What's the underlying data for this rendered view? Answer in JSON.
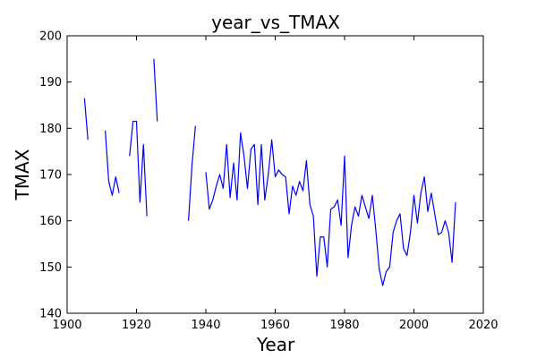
{
  "chart_data": {
    "type": "line",
    "title": "year_vs_TMAX",
    "xlabel": "Year",
    "ylabel": "TMAX",
    "xlim": [
      1900,
      2020
    ],
    "ylim": [
      140,
      200
    ],
    "xticks": [
      1900,
      1920,
      1940,
      1960,
      1980,
      2000,
      2020
    ],
    "yticks": [
      140,
      150,
      160,
      170,
      180,
      190,
      200
    ],
    "grid": false,
    "color": "#0000ff",
    "segments": [
      {
        "x": [
          1905,
          1906
        ],
        "y": [
          186.5,
          177.5
        ]
      },
      {
        "x": [
          1911,
          1912,
          1913,
          1914,
          1915
        ],
        "y": [
          179.5,
          168.5,
          165.5,
          169.5,
          166
        ]
      },
      {
        "x": [
          1918,
          1919,
          1920,
          1921,
          1922,
          1923
        ],
        "y": [
          174,
          181.5,
          181.5,
          164,
          176.5,
          161
        ]
      },
      {
        "x": [
          1925,
          1926
        ],
        "y": [
          195,
          181.5
        ]
      },
      {
        "x": [
          1935,
          1936,
          1937
        ],
        "y": [
          160,
          172,
          180.5
        ]
      },
      {
        "x": [
          1940,
          1941,
          1942,
          1943,
          1944,
          1945,
          1946,
          1947,
          1948,
          1949,
          1950,
          1951,
          1952,
          1953,
          1954,
          1955,
          1956,
          1957,
          1958,
          1959,
          1960,
          1961,
          1962,
          1963,
          1964,
          1965,
          1966,
          1967,
          1968,
          1969,
          1970,
          1971,
          1972,
          1973,
          1974,
          1975,
          1976,
          1977,
          1978,
          1979,
          1980,
          1981,
          1982,
          1983,
          1984,
          1985,
          1986,
          1987,
          1988,
          1989,
          1990,
          1991,
          1992,
          1993,
          1994,
          1995,
          1996,
          1997,
          1998,
          1999,
          2000,
          2001,
          2002,
          2003,
          2004,
          2005,
          2006,
          2007,
          2008,
          2009,
          2010,
          2011,
          2012
        ],
        "y": [
          170.5,
          162.5,
          164.5,
          167.5,
          170,
          167,
          176.5,
          165,
          172.5,
          164.5,
          179,
          174,
          167,
          175.5,
          176.5,
          163.5,
          176.5,
          164.5,
          170,
          177.5,
          169.5,
          171,
          170,
          169.5,
          161.5,
          167.5,
          165.5,
          168.5,
          166.5,
          173,
          163.5,
          161,
          148,
          156.5,
          156.5,
          150,
          162.5,
          163,
          164.5,
          159,
          174,
          152,
          159,
          163,
          161,
          165.5,
          163,
          160.5,
          165.5,
          158,
          149.5,
          146,
          149,
          150,
          157.5,
          160,
          161.5,
          154,
          152.5,
          157.5,
          165.5,
          159.5,
          166,
          169.5,
          162,
          166,
          161.5,
          157,
          157.5,
          160,
          157.5,
          151,
          164
        ]
      }
    ]
  }
}
